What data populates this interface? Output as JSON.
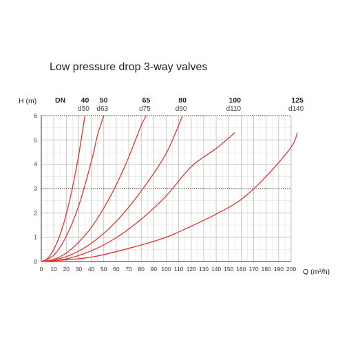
{
  "chart_data": {
    "type": "line",
    "title": "Low pressure drop 3-way valves",
    "xlabel": "Q (m³/h)",
    "ylabel": "H (m)",
    "xlim": [
      0,
      200
    ],
    "ylim": [
      0,
      6
    ],
    "x_ticks": [
      "0",
      "10",
      "20",
      "30",
      "40",
      "50",
      "60",
      "70",
      "80",
      "90",
      "100",
      "110",
      "120",
      "130",
      "140",
      "150",
      "160",
      "170",
      "180",
      "190",
      "200"
    ],
    "y_ticks": [
      "0",
      "1",
      "2",
      "3",
      "4",
      "5",
      "6"
    ],
    "grid": true,
    "header_label": "DN",
    "line_color": "#e0342e",
    "series": [
      {
        "name": "40",
        "subname": "d50",
        "points": [
          [
            0,
            0
          ],
          [
            5,
            0.13
          ],
          [
            10,
            0.5
          ],
          [
            15,
            1.1
          ],
          [
            20,
            1.95
          ],
          [
            25,
            3.05
          ],
          [
            30,
            4.4
          ],
          [
            34,
            5.7
          ],
          [
            35,
            6.0
          ]
        ]
      },
      {
        "name": "50",
        "subname": "d63",
        "points": [
          [
            0,
            0
          ],
          [
            10,
            0.26
          ],
          [
            20,
            1.04
          ],
          [
            30,
            2.3
          ],
          [
            40,
            4.1
          ],
          [
            45,
            5.2
          ],
          [
            50,
            6.0
          ]
        ]
      },
      {
        "name": "65",
        "subname": "d75",
        "points": [
          [
            0,
            0
          ],
          [
            10,
            0.09
          ],
          [
            20,
            0.35
          ],
          [
            30,
            0.8
          ],
          [
            40,
            1.4
          ],
          [
            50,
            2.2
          ],
          [
            60,
            3.15
          ],
          [
            70,
            4.3
          ],
          [
            80,
            5.6
          ],
          [
            84,
            6.0
          ]
        ]
      },
      {
        "name": "80",
        "subname": "d90",
        "points": [
          [
            0,
            0
          ],
          [
            20,
            0.2
          ],
          [
            40,
            0.75
          ],
          [
            60,
            1.65
          ],
          [
            80,
            2.9
          ],
          [
            100,
            4.45
          ],
          [
            113,
            6.0
          ]
        ]
      },
      {
        "name": "100",
        "subname": "d110",
        "points": [
          [
            0,
            0
          ],
          [
            20,
            0.11
          ],
          [
            40,
            0.44
          ],
          [
            60,
            0.98
          ],
          [
            80,
            1.74
          ],
          [
            100,
            2.7
          ],
          [
            120,
            3.9
          ],
          [
            140,
            4.65
          ],
          [
            155,
            5.3
          ]
        ]
      },
      {
        "name": "125",
        "subname": "d140",
        "points": [
          [
            0,
            0
          ],
          [
            40,
            0.18
          ],
          [
            80,
            0.68
          ],
          [
            100,
            1.0
          ],
          [
            120,
            1.45
          ],
          [
            140,
            1.95
          ],
          [
            160,
            2.55
          ],
          [
            180,
            3.5
          ],
          [
            200,
            4.7
          ],
          [
            205,
            5.3
          ]
        ]
      }
    ]
  }
}
